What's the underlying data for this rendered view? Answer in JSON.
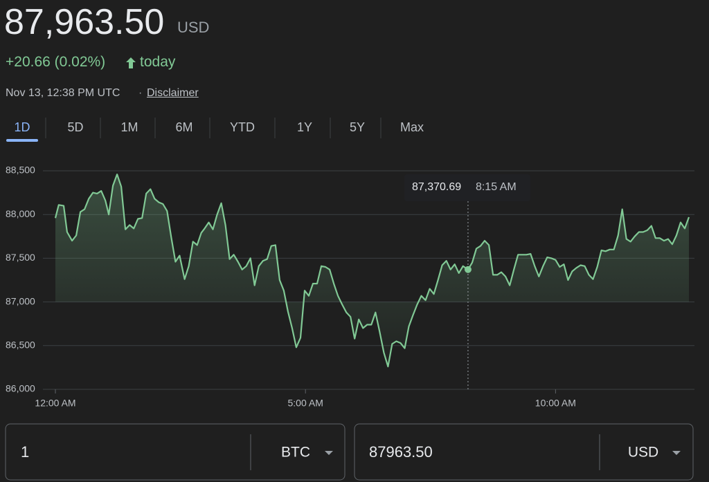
{
  "header": {
    "price": "87,963.50",
    "currency": "USD",
    "change": "+20.66 (0.02%)",
    "change_period": "today",
    "timestamp": "Nov 13, 12:38 PM UTC",
    "separator": "·",
    "disclaimer": "Disclaimer"
  },
  "tabs": {
    "items": [
      "1D",
      "5D",
      "1M",
      "6M",
      "YTD",
      "1Y",
      "5Y",
      "Max"
    ],
    "active": 0
  },
  "chart_data": {
    "type": "line",
    "color": "#81c995",
    "x": [
      0,
      4,
      10,
      14,
      20,
      25,
      30,
      35,
      40,
      45,
      50,
      55,
      60,
      64,
      69,
      74,
      79,
      84,
      89,
      94,
      99,
      104,
      109,
      114,
      119,
      124,
      129,
      134,
      139,
      144,
      149,
      155,
      160,
      165,
      170,
      175,
      179,
      184,
      189,
      194,
      199,
      204,
      209,
      214,
      219,
      224,
      229,
      234,
      239,
      244,
      249,
      254,
      259,
      264,
      269,
      274,
      279,
      284,
      289,
      294,
      299,
      304,
      309,
      314,
      319,
      324,
      329,
      334,
      339,
      344,
      349,
      354,
      359,
      364,
      369,
      374,
      379,
      384,
      389,
      394,
      399,
      404,
      409,
      414,
      419,
      424,
      429,
      434,
      439,
      444,
      449,
      454,
      459,
      464,
      469,
      474,
      479,
      484,
      489,
      495,
      500,
      505,
      510,
      515,
      520,
      525,
      530,
      535,
      540,
      545,
      550,
      555,
      560,
      565,
      570,
      575,
      580,
      585,
      590,
      595,
      600,
      605,
      610,
      615,
      620,
      625,
      630,
      635,
      640,
      645,
      650,
      655,
      660,
      665,
      670,
      675,
      680,
      685,
      690,
      695,
      700,
      705,
      710,
      715,
      720,
      725,
      730,
      735,
      740,
      745,
      750,
      755,
      760
    ],
    "values": [
      87960,
      88110,
      88100,
      87800,
      87700,
      87760,
      88030,
      88060,
      88180,
      88250,
      88240,
      88270,
      88160,
      88000,
      88330,
      88460,
      88320,
      87830,
      87880,
      87840,
      87950,
      87960,
      88240,
      88290,
      88180,
      88140,
      88120,
      88040,
      87740,
      87460,
      87530,
      87260,
      87410,
      87690,
      87650,
      87790,
      87840,
      87910,
      87830,
      88000,
      88130,
      87880,
      87490,
      87540,
      87460,
      87370,
      87410,
      87500,
      87190,
      87410,
      87470,
      87490,
      87640,
      87650,
      87250,
      87130,
      86890,
      86700,
      86480,
      86590,
      87130,
      87070,
      87210,
      87210,
      87410,
      87400,
      87370,
      87210,
      87070,
      86970,
      86880,
      86830,
      86580,
      86800,
      86700,
      86740,
      86740,
      86880,
      86660,
      86420,
      86260,
      86520,
      86550,
      86530,
      86470,
      86720,
      86850,
      86970,
      87070,
      87020,
      87150,
      87090,
      87250,
      87420,
      87470,
      87370,
      87430,
      87330,
      87410,
      87370,
      87450,
      87610,
      87640,
      87700,
      87650,
      87310,
      87310,
      87340,
      87290,
      87190,
      87370,
      87540,
      87540,
      87540,
      87550,
      87410,
      87290,
      87410,
      87510,
      87500,
      87480,
      87400,
      87430,
      87250,
      87350,
      87390,
      87420,
      87410,
      87310,
      87260,
      87400,
      87590,
      87580,
      87600,
      87600,
      87760,
      88060,
      87720,
      87690,
      87750,
      87800,
      87800,
      87820,
      87870,
      87730,
      87730,
      87700,
      87720,
      87660,
      87760,
      87910,
      87840,
      87970
    ],
    "xlim": [
      0,
      760
    ],
    "xticks": [
      {
        "value": 0,
        "label": "12:00 AM"
      },
      {
        "value": 300,
        "label": "5:00 AM"
      },
      {
        "value": 600,
        "label": "10:00 AM"
      }
    ],
    "ylim": [
      86000,
      88500
    ],
    "yticks": [
      {
        "value": 86000,
        "label": "86,000"
      },
      {
        "value": 86500,
        "label": "86,500"
      },
      {
        "value": 87000,
        "label": "87,000"
      },
      {
        "value": 87500,
        "label": "87,500"
      },
      {
        "value": 88000,
        "label": "88,000"
      },
      {
        "value": 88500,
        "label": "88,500"
      }
    ],
    "grid": true,
    "tooltip": {
      "x": 495,
      "value": 87370.69,
      "value_label": "87,370.69",
      "time_label": "8:15 AM"
    }
  },
  "converter": {
    "amount": "1",
    "from_currency": "BTC",
    "result": "87963.50",
    "to_currency": "USD"
  }
}
